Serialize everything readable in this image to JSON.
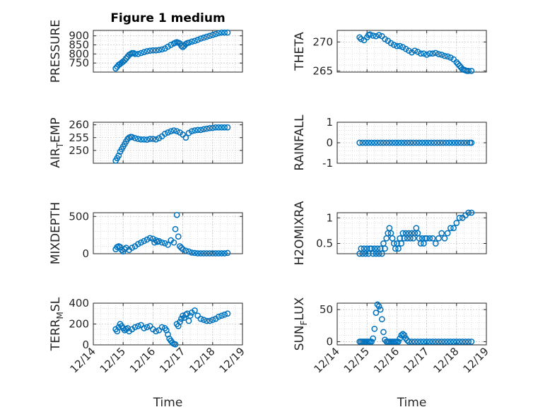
{
  "figure": {
    "title": "Figure 1 medium",
    "marker_color": "#0072BD"
  },
  "chart_data": [
    {
      "type": "scatter",
      "ylabel_main": "PRESSURE",
      "ylabel_sub": "",
      "ylabel_tail": "",
      "title": "Figure 1 medium",
      "xlabel": "",
      "ylim": [
        700,
        930
      ],
      "yticks": [
        750,
        800,
        850,
        900
      ],
      "yminor": [
        725,
        775,
        825,
        875,
        925
      ],
      "xticks_shown": false,
      "series": [
        {
          "x": [
            14.75,
            14.8,
            14.85,
            14.9,
            14.95,
            15.0,
            15.05,
            15.1,
            15.15,
            15.2,
            15.25,
            15.3,
            15.35,
            15.4,
            15.5,
            15.6,
            15.7,
            15.8,
            15.9,
            16.0,
            16.1,
            16.2,
            16.3,
            16.4,
            16.5,
            16.6,
            16.7,
            16.75,
            16.8,
            16.85,
            16.9,
            16.95,
            17.0,
            17.05,
            17.1,
            17.15,
            17.2,
            17.3,
            17.4,
            17.5,
            17.6,
            17.7,
            17.8,
            17.9,
            18.0,
            18.1,
            18.2,
            18.3,
            18.4,
            18.5
          ],
          "y": [
            720,
            730,
            740,
            745,
            752,
            758,
            765,
            775,
            785,
            795,
            800,
            805,
            805,
            800,
            800,
            805,
            810,
            815,
            818,
            820,
            820,
            822,
            825,
            830,
            840,
            850,
            858,
            862,
            865,
            862,
            858,
            845,
            838,
            845,
            855,
            860,
            862,
            868,
            872,
            878,
            885,
            890,
            895,
            900,
            905,
            910,
            915,
            918,
            918,
            918
          ]
        }
      ]
    },
    {
      "type": "scatter",
      "ylabel_main": "THETA",
      "ylabel_sub": "",
      "ylabel_tail": "",
      "title": "",
      "xlabel": "",
      "ylim": [
        264.8,
        272
      ],
      "yticks": [
        265,
        270
      ],
      "yminor": [
        266,
        267,
        268,
        269,
        271
      ],
      "xticks_shown": false,
      "series": [
        {
          "x": [
            14.75,
            14.8,
            14.9,
            15.0,
            15.05,
            15.1,
            15.2,
            15.3,
            15.4,
            15.5,
            15.6,
            15.7,
            15.8,
            15.9,
            16.0,
            16.1,
            16.2,
            16.3,
            16.4,
            16.5,
            16.6,
            16.7,
            16.8,
            16.9,
            17.0,
            17.1,
            17.2,
            17.3,
            17.4,
            17.5,
            17.6,
            17.7,
            17.8,
            17.9,
            18.0,
            18.05,
            18.1,
            18.15,
            18.2,
            18.25,
            18.3,
            18.35,
            18.4,
            18.5
          ],
          "y": [
            270.8,
            270.5,
            270.3,
            270.8,
            271.2,
            271.3,
            271.1,
            271.0,
            271.2,
            271.0,
            270.5,
            270.2,
            269.8,
            269.5,
            269.3,
            269.3,
            269.1,
            268.8,
            268.5,
            268.2,
            268.5,
            268.3,
            268.0,
            268.0,
            267.8,
            268.0,
            268.0,
            268.1,
            267.9,
            267.8,
            267.6,
            267.5,
            267.3,
            267.0,
            266.5,
            266.2,
            265.9,
            265.6,
            265.3,
            265.2,
            265.1,
            265.0,
            265.0,
            265.0
          ]
        }
      ]
    },
    {
      "type": "scatter",
      "ylabel_main": "AIR",
      "ylabel_sub": "T",
      "ylabel_tail": "EMP",
      "title": "",
      "xlabel": "",
      "ylim": [
        245,
        261
      ],
      "yticks": [
        250,
        255,
        260
      ],
      "yminor": [
        246,
        247,
        248,
        249,
        251,
        252,
        253,
        254,
        256,
        257,
        258,
        259
      ],
      "xticks_shown": false,
      "series": [
        {
          "x": [
            14.75,
            14.8,
            14.85,
            14.9,
            14.95,
            15.0,
            15.05,
            15.1,
            15.15,
            15.2,
            15.25,
            15.3,
            15.4,
            15.5,
            15.6,
            15.7,
            15.8,
            15.9,
            16.0,
            16.1,
            16.2,
            16.3,
            16.4,
            16.5,
            16.6,
            16.7,
            16.8,
            16.9,
            17.0,
            17.1,
            17.2,
            17.3,
            17.4,
            17.5,
            17.6,
            17.7,
            17.8,
            17.9,
            18.0,
            18.1,
            18.2,
            18.3,
            18.4,
            18.5
          ],
          "y": [
            246,
            247,
            248,
            249.5,
            250.5,
            251.5,
            252.5,
            253.5,
            254.5,
            255,
            255.3,
            255.2,
            254.8,
            254.5,
            254.3,
            254.3,
            254.2,
            254.5,
            254.5,
            254.3,
            254.8,
            255.5,
            256.5,
            257,
            257.5,
            257.8,
            257.5,
            257,
            256.2,
            255,
            256.8,
            257.5,
            257.8,
            258,
            258,
            258.3,
            258.5,
            258.7,
            258.8,
            259,
            259,
            259,
            259,
            259
          ]
        }
      ]
    },
    {
      "type": "scatter",
      "ylabel_main": "RAINFALL",
      "ylabel_sub": "",
      "ylabel_tail": "",
      "title": "",
      "xlabel": "",
      "ylim": [
        -1,
        1
      ],
      "yticks": [
        -1,
        0,
        1
      ],
      "yminor": [
        -0.8,
        -0.6,
        -0.4,
        -0.2,
        0.2,
        0.4,
        0.6,
        0.8
      ],
      "xticks_shown": false,
      "series": [
        {
          "x": [
            14.75,
            14.85,
            14.95,
            15.05,
            15.15,
            15.25,
            15.35,
            15.45,
            15.55,
            15.65,
            15.75,
            15.85,
            15.95,
            16.05,
            16.15,
            16.25,
            16.35,
            16.45,
            16.55,
            16.65,
            16.75,
            16.85,
            16.95,
            17.05,
            17.15,
            17.25,
            17.35,
            17.45,
            17.55,
            17.65,
            17.75,
            17.85,
            17.95,
            18.05,
            18.15,
            18.25,
            18.35,
            18.45,
            18.5
          ],
          "y": [
            0,
            0,
            0,
            0,
            0,
            0,
            0,
            0,
            0,
            0,
            0,
            0,
            0,
            0,
            0,
            0,
            0,
            0,
            0,
            0,
            0,
            0,
            0,
            0,
            0,
            0,
            0,
            0,
            0,
            0,
            0,
            0,
            0,
            0,
            0,
            0,
            0,
            0,
            0
          ]
        }
      ]
    },
    {
      "type": "scatter",
      "ylabel_main": "MIXDEPTH",
      "ylabel_sub": "",
      "ylabel_tail": "",
      "title": "",
      "xlabel": "",
      "ylim": [
        0,
        550
      ],
      "yticks": [
        0,
        500
      ],
      "yminor": [
        100,
        200,
        300,
        400
      ],
      "xticks_shown": false,
      "series": [
        {
          "x": [
            14.75,
            14.8,
            14.85,
            14.9,
            14.95,
            15.0,
            15.05,
            15.1,
            15.2,
            15.3,
            15.4,
            15.5,
            15.6,
            15.7,
            15.8,
            15.9,
            16.0,
            16.05,
            16.1,
            16.15,
            16.2,
            16.3,
            16.4,
            16.5,
            16.6,
            16.7,
            16.75,
            16.8,
            16.85,
            16.9,
            16.95,
            17.0,
            17.1,
            17.2,
            17.3,
            17.4,
            17.5,
            17.6,
            17.7,
            17.8,
            17.9,
            18.0,
            18.1,
            18.2,
            18.3,
            18.4,
            18.5
          ],
          "y": [
            60,
            90,
            100,
            90,
            50,
            30,
            60,
            80,
            50,
            80,
            100,
            130,
            150,
            170,
            190,
            210,
            200,
            150,
            180,
            160,
            170,
            150,
            140,
            120,
            180,
            150,
            330,
            520,
            230,
            100,
            80,
            60,
            40,
            30,
            15,
            10,
            5,
            5,
            5,
            5,
            5,
            5,
            5,
            5,
            5,
            5,
            10
          ]
        }
      ]
    },
    {
      "type": "scatter",
      "ylabel_main": "H2OMIXRA",
      "ylabel_sub": "",
      "ylabel_tail": "",
      "title": "",
      "xlabel": "",
      "ylim": [
        0.3,
        1.1
      ],
      "yticks": [
        0.5,
        1
      ],
      "yminor": [
        0.4,
        0.6,
        0.7,
        0.8,
        0.9
      ],
      "xticks_shown": false,
      "series": [
        {
          "x": [
            14.75,
            14.8,
            14.85,
            14.9,
            14.95,
            15.0,
            15.05,
            15.1,
            15.15,
            15.2,
            15.25,
            15.3,
            15.35,
            15.4,
            15.45,
            15.5,
            15.55,
            15.6,
            15.65,
            15.7,
            15.75,
            15.8,
            15.85,
            15.9,
            15.95,
            16.0,
            16.05,
            16.1,
            16.15,
            16.2,
            16.25,
            16.3,
            16.35,
            16.4,
            16.45,
            16.5,
            16.55,
            16.6,
            16.65,
            16.7,
            16.75,
            16.8,
            16.85,
            16.9,
            16.95,
            17.0,
            17.1,
            17.2,
            17.3,
            17.4,
            17.5,
            17.6,
            17.7,
            17.8,
            17.9,
            18.0,
            18.1,
            18.2,
            18.3,
            18.4,
            18.5
          ],
          "y": [
            0.3,
            0.4,
            0.3,
            0.4,
            0.3,
            0.4,
            0.3,
            0.4,
            0.4,
            0.3,
            0.4,
            0.3,
            0.4,
            0.3,
            0.4,
            0.3,
            0.5,
            0.4,
            0.6,
            0.7,
            0.8,
            0.7,
            0.6,
            0.5,
            0.4,
            0.5,
            0.4,
            0.6,
            0.5,
            0.7,
            0.6,
            0.7,
            0.6,
            0.7,
            0.6,
            0.7,
            0.6,
            0.7,
            0.8,
            0.7,
            0.6,
            0.5,
            0.6,
            0.5,
            0.6,
            0.6,
            0.6,
            0.6,
            0.5,
            0.6,
            0.7,
            0.6,
            0.7,
            0.8,
            0.8,
            0.9,
            1.0,
            1.0,
            1.05,
            1.1,
            1.1
          ]
        }
      ]
    },
    {
      "type": "scatter",
      "ylabel_main": "TERR",
      "ylabel_sub": "M",
      "ylabel_tail": "SL",
      "title": "",
      "xlabel": "Time",
      "ylim": [
        0,
        400
      ],
      "yticks": [
        0,
        200,
        400
      ],
      "yminor": [
        50,
        100,
        150,
        250,
        300,
        350
      ],
      "xticks_shown": true,
      "series": [
        {
          "x": [
            14.75,
            14.8,
            14.85,
            14.9,
            14.95,
            15.0,
            15.05,
            15.1,
            15.15,
            15.2,
            15.3,
            15.4,
            15.5,
            15.6,
            15.7,
            15.8,
            15.9,
            16.0,
            16.1,
            16.2,
            16.3,
            16.4,
            16.45,
            16.5,
            16.55,
            16.6,
            16.65,
            16.7,
            16.75,
            16.8,
            16.85,
            16.9,
            16.95,
            17.0,
            17.05,
            17.1,
            17.15,
            17.2,
            17.25,
            17.3,
            17.4,
            17.5,
            17.6,
            17.7,
            17.8,
            17.9,
            18.0,
            18.1,
            18.2,
            18.3,
            18.4,
            18.5
          ],
          "y": [
            150,
            130,
            170,
            200,
            180,
            160,
            140,
            150,
            160,
            130,
            150,
            170,
            180,
            190,
            160,
            170,
            180,
            150,
            130,
            140,
            170,
            160,
            140,
            100,
            60,
            40,
            20,
            10,
            5,
            200,
            180,
            220,
            250,
            280,
            260,
            290,
            300,
            230,
            280,
            310,
            330,
            280,
            250,
            240,
            230,
            230,
            240,
            250,
            270,
            280,
            290,
            300
          ]
        }
      ]
    },
    {
      "type": "scatter",
      "ylabel_main": "SUN",
      "ylabel_sub": "F",
      "ylabel_tail": "LUX",
      "title": "",
      "xlabel": "Time",
      "ylim": [
        -5,
        60
      ],
      "yticks": [
        0,
        50
      ],
      "yminor": [
        10,
        20,
        30,
        40
      ],
      "xticks_shown": true,
      "series": [
        {
          "x": [
            14.75,
            14.8,
            14.85,
            14.9,
            14.95,
            15.0,
            15.05,
            15.1,
            15.15,
            15.2,
            15.25,
            15.3,
            15.35,
            15.4,
            15.45,
            15.5,
            15.55,
            15.6,
            15.65,
            15.7,
            15.75,
            15.8,
            15.85,
            15.9,
            15.95,
            16.0,
            16.05,
            16.1,
            16.15,
            16.2,
            16.25,
            16.3,
            16.35,
            16.4,
            16.5,
            16.6,
            16.7,
            16.8,
            16.9,
            17.0,
            17.1,
            17.2,
            17.3,
            17.4,
            17.5,
            17.6,
            17.7,
            17.8,
            17.9,
            18.0,
            18.1,
            18.2,
            18.3,
            18.4,
            18.5
          ],
          "y": [
            0,
            0,
            0,
            0,
            0,
            0,
            0,
            0,
            0,
            5,
            20,
            45,
            58,
            55,
            50,
            35,
            15,
            3,
            0,
            0,
            0,
            0,
            0,
            0,
            0,
            0,
            0,
            5,
            10,
            12,
            10,
            5,
            2,
            0,
            0,
            0,
            0,
            0,
            0,
            0,
            0,
            0,
            0,
            0,
            0,
            0,
            0,
            0,
            0,
            0,
            0,
            0,
            0,
            0,
            0
          ]
        }
      ]
    }
  ],
  "xaxis": {
    "xlim": [
      14,
      19
    ],
    "tick_values": [
      14,
      15,
      16,
      17,
      18,
      19
    ],
    "tick_labels": [
      "12/14",
      "12/15",
      "12/16",
      "12/17",
      "12/18",
      "12/19"
    ]
  }
}
